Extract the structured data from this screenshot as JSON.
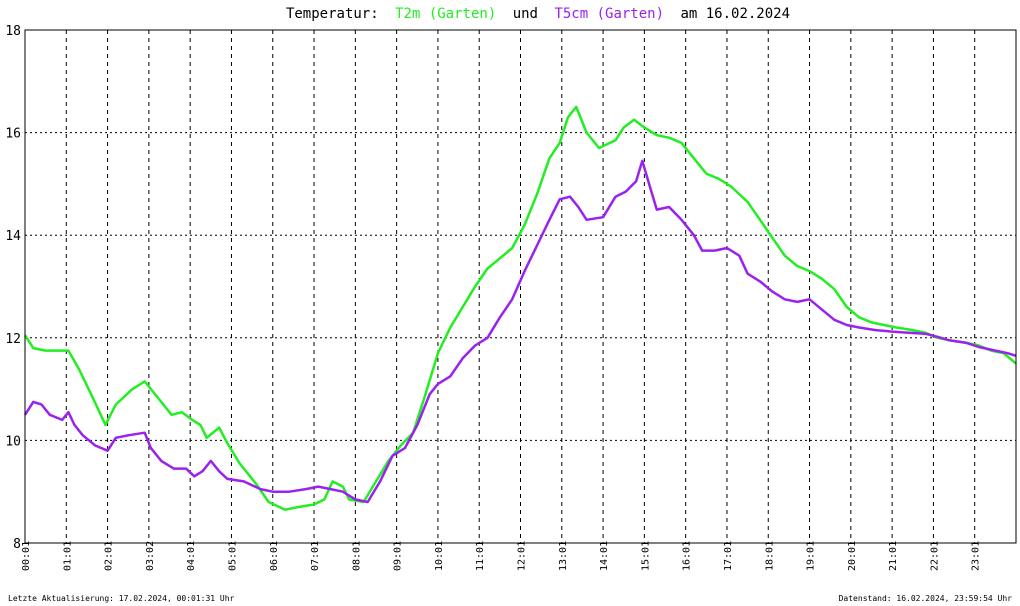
{
  "chart_data": {
    "type": "line",
    "title": {
      "prefix": "Temperatur:",
      "series1": "T2m (Garten)",
      "joiner": "und",
      "series2": "T5cm (Garten)",
      "suffix": "am 16.02.2024"
    },
    "ylim": [
      8,
      18
    ],
    "yticks": [
      8,
      10,
      12,
      14,
      16,
      18
    ],
    "xlim": [
      0,
      24
    ],
    "xtick_labels": [
      "00:01",
      "01:01",
      "02:01",
      "03:02",
      "04:01",
      "05:01",
      "06:01",
      "07:01",
      "08:01",
      "09:01",
      "10:01",
      "11:01",
      "12:01",
      "13:01",
      "14:01",
      "15:01",
      "16:01",
      "17:01",
      "18:01",
      "19:01",
      "20:01",
      "21:01",
      "22:01",
      "23:01"
    ],
    "grid": true,
    "series": [
      {
        "name": "T2m (Garten)",
        "color": "#22ee22",
        "points": [
          [
            0,
            12.05
          ],
          [
            0.2,
            11.8
          ],
          [
            0.5,
            11.75
          ],
          [
            1.05,
            11.75
          ],
          [
            1.3,
            11.4
          ],
          [
            1.6,
            10.9
          ],
          [
            1.95,
            10.3
          ],
          [
            2.2,
            10.7
          ],
          [
            2.6,
            11.0
          ],
          [
            2.9,
            11.15
          ],
          [
            3.25,
            10.8
          ],
          [
            3.55,
            10.5
          ],
          [
            3.8,
            10.55
          ],
          [
            4.05,
            10.4
          ],
          [
            4.25,
            10.3
          ],
          [
            4.4,
            10.05
          ],
          [
            4.7,
            10.25
          ],
          [
            4.9,
            9.95
          ],
          [
            5.2,
            9.55
          ],
          [
            5.6,
            9.15
          ],
          [
            5.9,
            8.8
          ],
          [
            6.3,
            8.65
          ],
          [
            6.6,
            8.7
          ],
          [
            7.0,
            8.75
          ],
          [
            7.25,
            8.85
          ],
          [
            7.45,
            9.2
          ],
          [
            7.7,
            9.1
          ],
          [
            7.85,
            8.85
          ],
          [
            8.2,
            8.8
          ],
          [
            8.5,
            9.2
          ],
          [
            8.8,
            9.6
          ],
          [
            9.1,
            9.9
          ],
          [
            9.4,
            10.15
          ],
          [
            9.7,
            10.9
          ],
          [
            10.0,
            11.7
          ],
          [
            10.3,
            12.2
          ],
          [
            10.6,
            12.6
          ],
          [
            10.9,
            13.0
          ],
          [
            11.2,
            13.35
          ],
          [
            11.5,
            13.55
          ],
          [
            11.8,
            13.75
          ],
          [
            12.1,
            14.2
          ],
          [
            12.4,
            14.8
          ],
          [
            12.7,
            15.5
          ],
          [
            12.95,
            15.8
          ],
          [
            13.15,
            16.3
          ],
          [
            13.35,
            16.5
          ],
          [
            13.6,
            16.0
          ],
          [
            13.9,
            15.7
          ],
          [
            14.3,
            15.85
          ],
          [
            14.5,
            16.1
          ],
          [
            14.75,
            16.25
          ],
          [
            15.0,
            16.1
          ],
          [
            15.3,
            15.95
          ],
          [
            15.6,
            15.9
          ],
          [
            15.9,
            15.8
          ],
          [
            16.2,
            15.5
          ],
          [
            16.5,
            15.2
          ],
          [
            16.8,
            15.1
          ],
          [
            17.1,
            14.95
          ],
          [
            17.5,
            14.65
          ],
          [
            17.8,
            14.3
          ],
          [
            18.1,
            13.95
          ],
          [
            18.4,
            13.6
          ],
          [
            18.7,
            13.4
          ],
          [
            19.0,
            13.3
          ],
          [
            19.3,
            13.15
          ],
          [
            19.6,
            12.95
          ],
          [
            19.9,
            12.6
          ],
          [
            20.2,
            12.4
          ],
          [
            20.5,
            12.3
          ],
          [
            20.8,
            12.25
          ],
          [
            21.1,
            12.2
          ],
          [
            21.5,
            12.15
          ],
          [
            21.8,
            12.1
          ],
          [
            22.1,
            12.0
          ],
          [
            22.4,
            11.95
          ],
          [
            22.8,
            11.9
          ],
          [
            23.1,
            11.85
          ],
          [
            23.4,
            11.75
          ],
          [
            23.7,
            11.7
          ],
          [
            24.0,
            11.5
          ]
        ]
      },
      {
        "name": "T5cm (Garten)",
        "color": "#9922ee",
        "points": [
          [
            0,
            10.5
          ],
          [
            0.2,
            10.75
          ],
          [
            0.4,
            10.7
          ],
          [
            0.6,
            10.5
          ],
          [
            0.9,
            10.4
          ],
          [
            1.05,
            10.55
          ],
          [
            1.2,
            10.3
          ],
          [
            1.4,
            10.1
          ],
          [
            1.7,
            9.9
          ],
          [
            2.0,
            9.8
          ],
          [
            2.2,
            10.05
          ],
          [
            2.5,
            10.1
          ],
          [
            2.9,
            10.15
          ],
          [
            3.05,
            9.85
          ],
          [
            3.3,
            9.6
          ],
          [
            3.6,
            9.45
          ],
          [
            3.9,
            9.45
          ],
          [
            4.1,
            9.3
          ],
          [
            4.3,
            9.4
          ],
          [
            4.5,
            9.6
          ],
          [
            4.7,
            9.4
          ],
          [
            4.9,
            9.25
          ],
          [
            5.3,
            9.2
          ],
          [
            5.7,
            9.05
          ],
          [
            6.0,
            9.0
          ],
          [
            6.4,
            9.0
          ],
          [
            6.8,
            9.05
          ],
          [
            7.1,
            9.1
          ],
          [
            7.4,
            9.05
          ],
          [
            7.7,
            9.0
          ],
          [
            8.0,
            8.85
          ],
          [
            8.3,
            8.8
          ],
          [
            8.6,
            9.2
          ],
          [
            8.9,
            9.7
          ],
          [
            9.2,
            9.85
          ],
          [
            9.5,
            10.3
          ],
          [
            9.8,
            10.9
          ],
          [
            10.0,
            11.1
          ],
          [
            10.3,
            11.25
          ],
          [
            10.6,
            11.6
          ],
          [
            10.9,
            11.85
          ],
          [
            11.2,
            12.0
          ],
          [
            11.5,
            12.4
          ],
          [
            11.8,
            12.75
          ],
          [
            12.1,
            13.3
          ],
          [
            12.4,
            13.8
          ],
          [
            12.7,
            14.3
          ],
          [
            12.95,
            14.7
          ],
          [
            13.2,
            14.75
          ],
          [
            13.4,
            14.55
          ],
          [
            13.6,
            14.3
          ],
          [
            14.0,
            14.35
          ],
          [
            14.3,
            14.75
          ],
          [
            14.55,
            14.85
          ],
          [
            14.8,
            15.05
          ],
          [
            14.95,
            15.45
          ],
          [
            15.15,
            14.9
          ],
          [
            15.3,
            14.5
          ],
          [
            15.6,
            14.55
          ],
          [
            15.9,
            14.3
          ],
          [
            16.2,
            14.0
          ],
          [
            16.4,
            13.7
          ],
          [
            16.7,
            13.7
          ],
          [
            17.0,
            13.75
          ],
          [
            17.3,
            13.6
          ],
          [
            17.5,
            13.25
          ],
          [
            17.8,
            13.1
          ],
          [
            18.1,
            12.9
          ],
          [
            18.4,
            12.75
          ],
          [
            18.7,
            12.7
          ],
          [
            19.0,
            12.75
          ],
          [
            19.3,
            12.55
          ],
          [
            19.6,
            12.35
          ],
          [
            19.9,
            12.25
          ],
          [
            20.2,
            12.2
          ],
          [
            20.6,
            12.15
          ],
          [
            21.0,
            12.12
          ],
          [
            21.4,
            12.1
          ],
          [
            21.8,
            12.08
          ],
          [
            22.1,
            12.02
          ],
          [
            22.4,
            11.95
          ],
          [
            22.8,
            11.9
          ],
          [
            23.1,
            11.82
          ],
          [
            23.5,
            11.75
          ],
          [
            23.8,
            11.7
          ],
          [
            24.0,
            11.65
          ]
        ]
      }
    ]
  },
  "footer": {
    "left": "Letzte Aktualisierung: 17.02.2024, 00:01:31 Uhr",
    "right": "Datenstand: 16.02.2024, 23:59:54 Uhr"
  },
  "colors": {
    "t2m": "#22ee22",
    "t5cm": "#9922ee",
    "frame": "#000000"
  }
}
